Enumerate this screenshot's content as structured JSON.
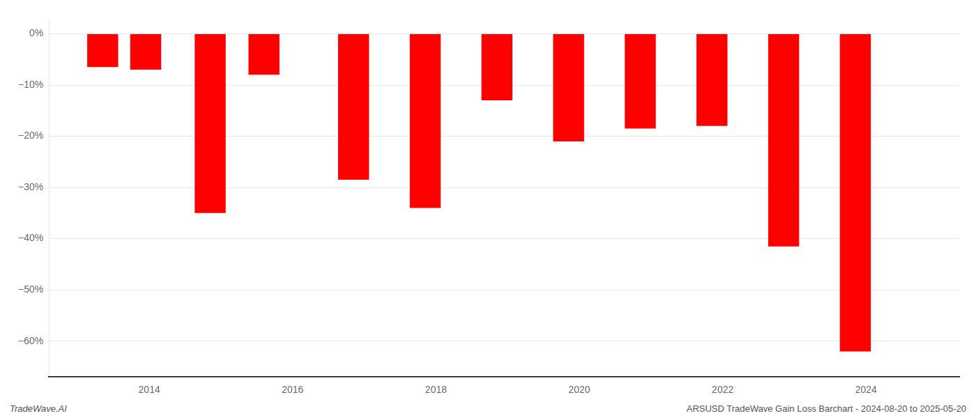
{
  "chart_data": {
    "type": "bar",
    "x": [
      2013.35,
      2013.95,
      2014.85,
      2015.6,
      2016.85,
      2017.85,
      2018.85,
      2019.85,
      2020.85,
      2021.85,
      2022.85,
      2023.85
    ],
    "values": [
      -6.5,
      -7.0,
      -35.0,
      -8.0,
      -28.5,
      -34.0,
      -13.0,
      -21.0,
      -18.5,
      -18.0,
      -41.5,
      -62.0
    ],
    "color": "#ff0000",
    "xlim": [
      2012.6,
      2025.3
    ],
    "xticks": [
      2014,
      2016,
      2018,
      2020,
      2022,
      2024
    ],
    "ylim": [
      -67,
      3
    ],
    "yticks": [
      {
        "value": 0,
        "label": "0%"
      },
      {
        "value": -10,
        "label": "−10%"
      },
      {
        "value": -20,
        "label": "−20%"
      },
      {
        "value": -30,
        "label": "−30%"
      },
      {
        "value": -40,
        "label": "−40%"
      },
      {
        "value": -50,
        "label": "−50%"
      },
      {
        "value": -60,
        "label": "−60%"
      }
    ],
    "grid": true,
    "annotations": [
      "TradeWave.AI",
      "ARSUSD TradeWave Gain Loss Barchart - 2024-08-20 to 2025-05-20"
    ]
  }
}
